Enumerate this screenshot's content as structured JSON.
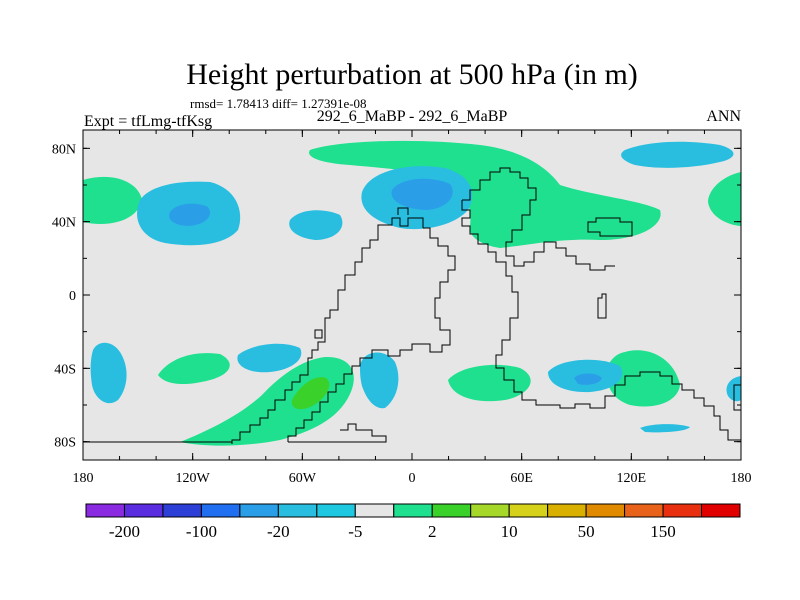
{
  "chart_data": {
    "type": "heatmap",
    "title": "Height perturbation at 500 hPa (in m)",
    "subtitle": "rmsd= 1.78413 diff= 1.27391e-08",
    "left_label": "Expt = tfLmg-tfKsg",
    "center_label": "292_6_MaBP - 292_6_MaBP",
    "right_label": "ANN",
    "x_ticks": [
      {
        "value": -180,
        "label": "180"
      },
      {
        "value": -120,
        "label": "120W"
      },
      {
        "value": -60,
        "label": "60W"
      },
      {
        "value": 0,
        "label": "0"
      },
      {
        "value": 60,
        "label": "60E"
      },
      {
        "value": 120,
        "label": "120E"
      },
      {
        "value": 180,
        "label": "180"
      }
    ],
    "y_ticks": [
      {
        "value": 80,
        "label": "80N"
      },
      {
        "value": 40,
        "label": "40N"
      },
      {
        "value": 0,
        "label": "0"
      },
      {
        "value": -40,
        "label": "40S"
      },
      {
        "value": -80,
        "label": "80S"
      }
    ],
    "xlim": [
      -180,
      180
    ],
    "ylim": [
      -90,
      90
    ],
    "colorbar": {
      "colors": [
        "#8a2be2",
        "#5a2ee0",
        "#2c3fd6",
        "#1f6ff0",
        "#2b9ee8",
        "#29bee0",
        "#1ec8e0",
        "#e6e6e6",
        "#1fe08e",
        "#3ad22a",
        "#a6d82a",
        "#d6d21c",
        "#d9b000",
        "#e08a00",
        "#e8621a",
        "#e83010",
        "#e00000"
      ],
      "tick_labels": [
        "-200",
        "-100",
        "-20",
        "-5",
        "2",
        "10",
        "50",
        "150"
      ]
    }
  }
}
